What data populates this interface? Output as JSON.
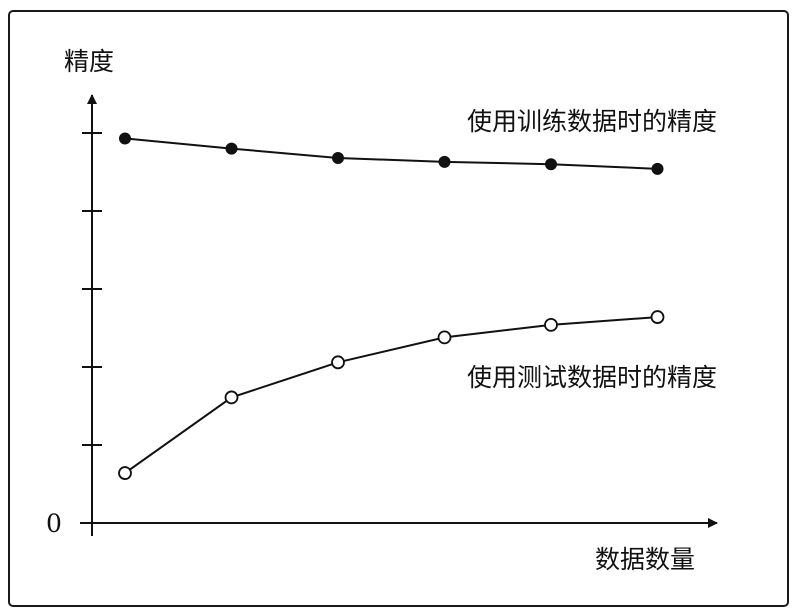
{
  "chart_data": {
    "type": "line",
    "ylabel": "精度",
    "xlabel": "数据数量",
    "origin_label": "0",
    "x": [
      1,
      2,
      3,
      4,
      5,
      6
    ],
    "ylim": [
      0,
      5
    ],
    "y_tick_count": 5,
    "grid": false,
    "series": [
      {
        "name": "使用训练数据时的精度",
        "values": [
          4.93,
          4.8,
          4.68,
          4.63,
          4.6,
          4.54
        ],
        "marker": "filled-circle",
        "color": "#111111"
      },
      {
        "name": "使用测试数据时的精度",
        "values": [
          0.64,
          1.61,
          2.06,
          2.38,
          2.54,
          2.64
        ],
        "marker": "open-circle",
        "color": "#111111"
      }
    ]
  }
}
